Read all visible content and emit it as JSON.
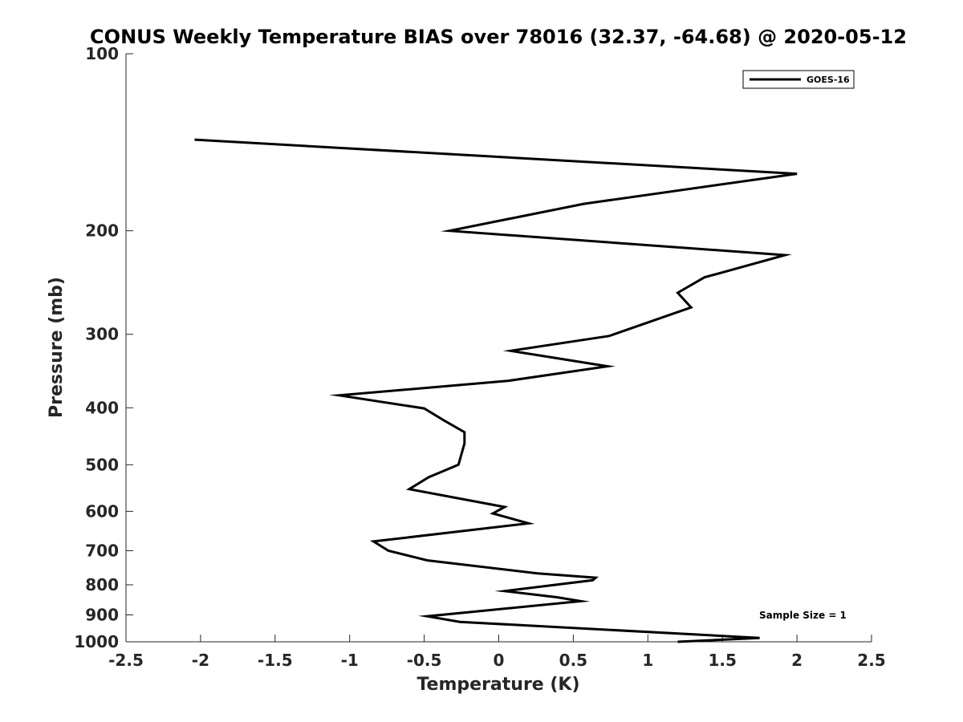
{
  "chart_data": {
    "type": "line",
    "title": "CONUS Weekly Temperature BIAS over 78016 (32.37, -64.68) @ 2020-05-12",
    "xlabel": "Temperature (K)",
    "ylabel": "Pressure (mb)",
    "xlim": [
      -2.5,
      2.5
    ],
    "ylim": [
      100,
      1000
    ],
    "y_scale": "log",
    "y_reversed": true,
    "x_ticks": [
      -2.5,
      -2,
      -1.5,
      -1,
      -0.5,
      0,
      0.5,
      1,
      1.5,
      2,
      2.5
    ],
    "x_tick_labels": [
      "-2.5",
      "-2",
      "-1.5",
      "-1",
      "-0.5",
      "0",
      "0.5",
      "1",
      "1.5",
      "2",
      "2.5"
    ],
    "y_ticks": [
      100,
      200,
      300,
      400,
      500,
      600,
      700,
      800,
      900,
      1000
    ],
    "y_tick_labels": [
      "100",
      "200",
      "300",
      "400",
      "500",
      "600",
      "700",
      "800",
      "900",
      "1000"
    ],
    "grid": false,
    "legend_position": "top-right",
    "annotation": "Sample Size = 1",
    "series": [
      {
        "name": "GOES-16",
        "color": "#000000",
        "points": [
          [
            -2.04,
            140
          ],
          [
            2.0,
            160
          ],
          [
            0.57,
            180
          ],
          [
            -0.33,
            200
          ],
          [
            1.92,
            220
          ],
          [
            1.38,
            240
          ],
          [
            1.2,
            255
          ],
          [
            1.29,
            270
          ],
          [
            0.74,
            302
          ],
          [
            0.08,
            320
          ],
          [
            0.73,
            340
          ],
          [
            0.06,
            360
          ],
          [
            -1.07,
            381
          ],
          [
            -0.5,
            401
          ],
          [
            -0.37,
            420
          ],
          [
            -0.23,
            440
          ],
          [
            -0.23,
            460
          ],
          [
            -0.27,
            500
          ],
          [
            -0.47,
            525
          ],
          [
            -0.6,
            550
          ],
          [
            0.04,
            590
          ],
          [
            -0.04,
            605
          ],
          [
            0.2,
            629
          ],
          [
            -0.84,
            675
          ],
          [
            -0.74,
            700
          ],
          [
            -0.48,
            727
          ],
          [
            0.26,
            765
          ],
          [
            0.65,
            778
          ],
          [
            0.63,
            786
          ],
          [
            0.04,
            820
          ],
          [
            0.39,
            840
          ],
          [
            0.55,
            853
          ],
          [
            -0.48,
            905
          ],
          [
            -0.26,
            925
          ],
          [
            1.75,
            985
          ],
          [
            1.2,
            1000
          ]
        ]
      }
    ]
  }
}
